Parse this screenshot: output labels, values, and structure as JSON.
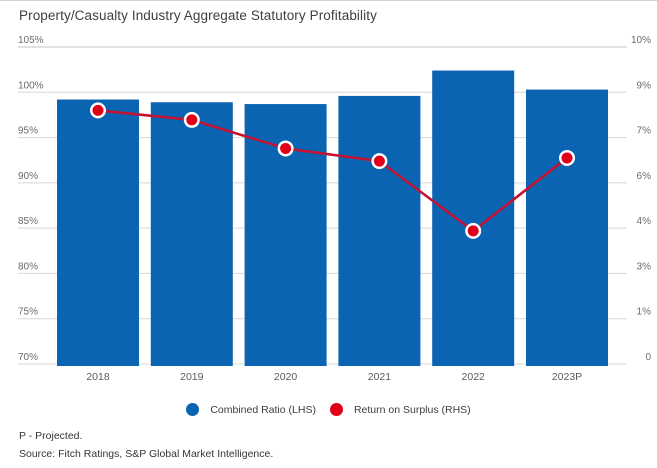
{
  "title": "Property/Casualty Industry Aggregate Statutory Profitability",
  "colors": {
    "bar_blue": "#0A64B2",
    "line_red": "#C41332",
    "dot_red": "#E00019",
    "grid": "#D8D8D8",
    "grid_top": "#C3C3C3",
    "tick_text": "#6B6B6B",
    "category_text": "#5C5C5C"
  },
  "footnotes": {
    "projected": "P - Projected.",
    "source": "Source: Fitch Ratings, S&P Global Market Intelligence."
  },
  "chart_data": {
    "type": "bar",
    "subtype": "bar+line dual axis",
    "categories": [
      "2018",
      "2019",
      "2020",
      "2021",
      "2022",
      "2023P"
    ],
    "series": [
      {
        "name": "Combined Ratio (LHS)",
        "type": "bar",
        "axis": "left",
        "values": [
          99.2,
          98.9,
          98.7,
          99.6,
          102.4,
          100.3
        ]
      },
      {
        "name": "Return on Surplus (RHS)",
        "type": "line",
        "axis": "right",
        "values": [
          8.0,
          7.7,
          6.8,
          6.4,
          4.2,
          6.5
        ]
      }
    ],
    "left_axis": {
      "min": 70,
      "max": 105,
      "step": 5,
      "tick_labels_top_to_bottom": [
        "105%",
        "100%",
        "95%",
        "90%",
        "85%",
        "80%",
        "75%",
        "70%"
      ]
    },
    "right_axis": {
      "min": 0,
      "max": 10,
      "tick_labels_top_to_bottom": [
        "10%",
        "9%",
        "7%",
        "6%",
        "4%",
        "3%",
        "1%",
        "0"
      ]
    },
    "grid": true,
    "legend_position": "bottom",
    "legend": [
      {
        "label": "Combined Ratio (LHS)",
        "swatch": "bar_blue"
      },
      {
        "label": "Return on Surplus (RHS)",
        "swatch": "dot_red"
      }
    ]
  }
}
